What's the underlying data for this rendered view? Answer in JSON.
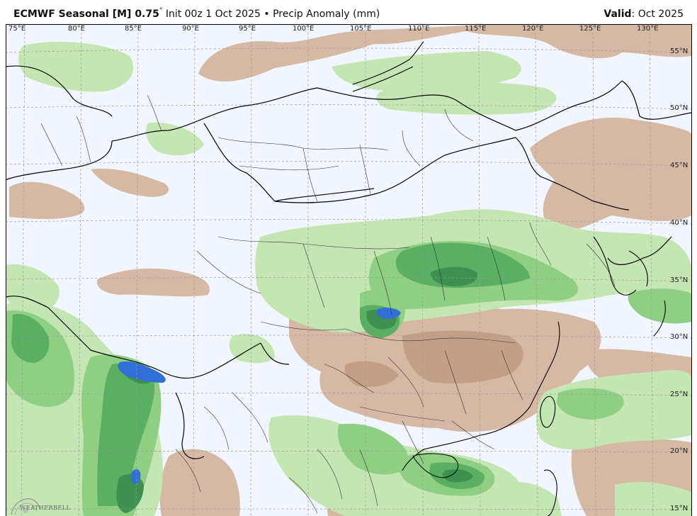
{
  "header": {
    "model": "ECMWF Seasonal [M] 0.75",
    "degree": "°",
    "init": "Init 00z 1 Oct 2025",
    "bullet": "•",
    "field": "Precip Anomaly (mm)",
    "valid_label": "Valid",
    "valid_value": ": Oct 2025"
  },
  "lon_labels": [
    "75°E",
    "80°E",
    "85°E",
    "90°E",
    "95°E",
    "100°E",
    "105°E",
    "110°E",
    "115°E",
    "120°E",
    "125°E",
    "130°E"
  ],
  "lat_labels": [
    "55°N",
    "50°N",
    "45°N",
    "40°N",
    "35°N",
    "30°N",
    "25°N",
    "20°N",
    "15°N"
  ],
  "logo": {
    "text": "WEATHERBELL"
  },
  "colors": {
    "background_near_normal": "#f1f5fd",
    "dry_light": "#d6b9a4",
    "dry_medium": "#c29f86",
    "wet_light": "#c4e6b2",
    "wet_medium": "#8fcf83",
    "wet_strong": "#5aaf62",
    "wet_heavy": "#3d9050",
    "wet_extreme": "#2f6fd6"
  }
}
